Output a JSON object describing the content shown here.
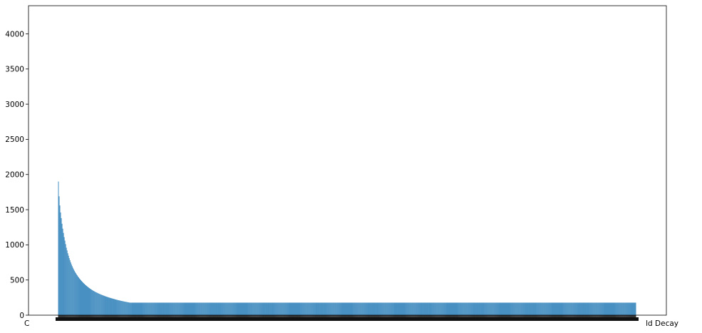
{
  "chart_data": {
    "type": "bar",
    "title": "",
    "xlabel": "",
    "ylabel": "",
    "ylim": [
      0,
      4400
    ],
    "yticks": [
      0,
      500,
      1000,
      1500,
      2000,
      2500,
      3000,
      3500,
      4000
    ],
    "grid": false,
    "bar_color": "#1f77b4",
    "bar_count": 800,
    "visible_x_labels": {
      "first": "C",
      "last": "ld Decay"
    },
    "values_head": [
      1900,
      1690,
      1560,
      1460,
      1380,
      1300,
      1230,
      1170,
      1110,
      1060,
      1010,
      960,
      920,
      880,
      845,
      810,
      780,
      750,
      722,
      697,
      674,
      652,
      632,
      614,
      597,
      580,
      565,
      550,
      536,
      522,
      510,
      498,
      486,
      475,
      464,
      454,
      444,
      434,
      425,
      417,
      408,
      400,
      392,
      384,
      377,
      370,
      363,
      356,
      350,
      344,
      338,
      332,
      327,
      322,
      317,
      312,
      307,
      302,
      298,
      293,
      289,
      285,
      281,
      277,
      273,
      269,
      265,
      262,
      258,
      255,
      251,
      248,
      245,
      242,
      239,
      236,
      233,
      230,
      227,
      224,
      221,
      218,
      216,
      213,
      211,
      208,
      206,
      203,
      201,
      199,
      197,
      194,
      192,
      190,
      188,
      186,
      184,
      182,
      180,
      178
    ],
    "values_tail_note": "remaining bars decay smoothly from ~176 to ~5"
  }
}
